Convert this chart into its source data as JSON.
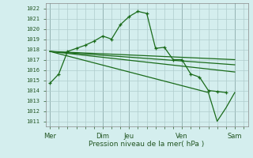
{
  "background_color": "#d4eeee",
  "grid_color": "#b0cccc",
  "line_color": "#1a6b1a",
  "title": "Pression niveau de la mer( hPa )",
  "ylim": [
    1010.5,
    1022.5
  ],
  "yticks": [
    1011,
    1012,
    1013,
    1014,
    1015,
    1016,
    1017,
    1018,
    1019,
    1020,
    1021,
    1022
  ],
  "xtick_labels": [
    "Mer",
    "Dim",
    "Jeu",
    "Ven",
    "Sam"
  ],
  "xtick_positions": [
    0,
    36,
    54,
    90,
    126
  ],
  "vline_positions": [
    0,
    36,
    54,
    90,
    126
  ],
  "xlim": [
    -3,
    135
  ],
  "series_main": {
    "x": [
      0,
      6,
      12,
      18,
      24,
      30,
      36,
      42,
      48,
      54,
      60,
      66,
      72,
      78,
      84,
      90,
      96,
      102,
      108,
      114,
      120
    ],
    "y": [
      1014.7,
      1015.6,
      1017.8,
      1018.1,
      1018.4,
      1018.8,
      1019.3,
      1019.0,
      1020.4,
      1021.2,
      1021.7,
      1021.5,
      1018.1,
      1018.2,
      1017.0,
      1017.0,
      1015.6,
      1015.3,
      1014.0,
      1013.9,
      1013.8
    ]
  },
  "series_trend": [
    {
      "x": [
        0,
        126
      ],
      "y": [
        1017.8,
        1017.0
      ]
    },
    {
      "x": [
        0,
        126
      ],
      "y": [
        1017.8,
        1016.5
      ]
    },
    {
      "x": [
        0,
        126
      ],
      "y": [
        1017.8,
        1015.8
      ]
    },
    {
      "x": [
        0,
        108,
        114,
        120,
        126
      ],
      "y": [
        1017.8,
        1013.8,
        1011.0,
        1012.3,
        1013.8
      ]
    }
  ]
}
